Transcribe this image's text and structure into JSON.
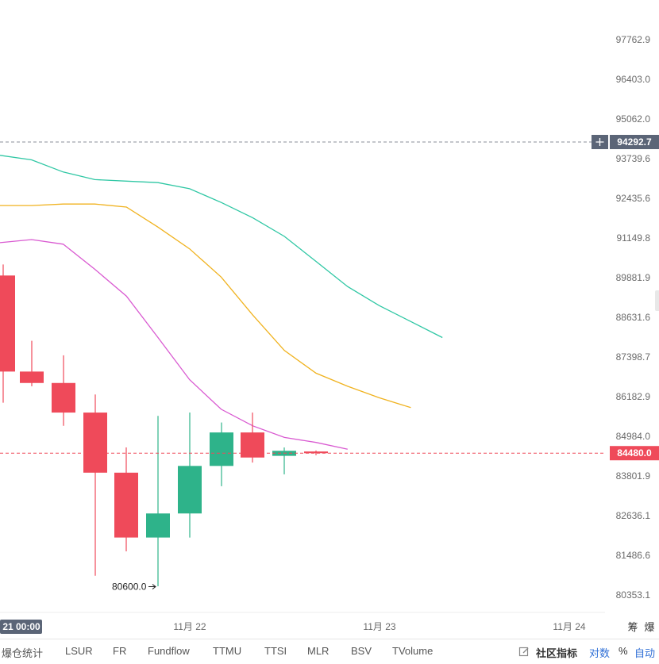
{
  "chart_data": {
    "type": "candlestick",
    "y_ticks": [
      "97762.9",
      "96403.0",
      "95062.0",
      "93739.6",
      "92435.6",
      "91149.8",
      "89881.9",
      "88631.6",
      "87398.7",
      "86182.9",
      "84984.0",
      "83801.9",
      "82636.1",
      "81486.6",
      "80353.1"
    ],
    "x_ticks": [
      "21 00:00",
      "11月 22",
      "11月 23",
      "11月 24"
    ],
    "price_tags": [
      {
        "label": "94292.7",
        "kind": "crosshair",
        "value": 94292.7
      },
      {
        "label": "84480.0",
        "kind": "last",
        "value": 84480.0
      }
    ],
    "low_annotation": "80600.0",
    "candles": [
      {
        "open": 89950,
        "high": 90300,
        "low": 86000,
        "close": 86950,
        "color": "red"
      },
      {
        "open": 86950,
        "high": 87900,
        "low": 86500,
        "close": 86600,
        "color": "red"
      },
      {
        "open": 86600,
        "high": 87450,
        "low": 85300,
        "close": 85700,
        "color": "red"
      },
      {
        "open": 85700,
        "high": 86250,
        "low": 80900,
        "close": 83900,
        "color": "red"
      },
      {
        "open": 83900,
        "high": 84650,
        "low": 81600,
        "close": 82000,
        "color": "red"
      },
      {
        "open": 82000,
        "high": 85600,
        "low": 80600,
        "close": 82700,
        "color": "green"
      },
      {
        "open": 82700,
        "high": 85700,
        "low": 82000,
        "close": 84100,
        "color": "green"
      },
      {
        "open": 84100,
        "high": 85400,
        "low": 83500,
        "close": 85100,
        "color": "green"
      },
      {
        "open": 85100,
        "high": 85700,
        "low": 84200,
        "close": 84350,
        "color": "red"
      },
      {
        "open": 84400,
        "high": 84650,
        "low": 83850,
        "close": 84550,
        "color": "green"
      },
      {
        "open": 84530,
        "high": 84560,
        "low": 84420,
        "close": 84480,
        "color": "red"
      }
    ],
    "bands": [
      {
        "color": "#2fc7a4",
        "values": [
          93850,
          93700,
          93300,
          93050,
          93000,
          92950,
          92750,
          92300,
          91800,
          91200,
          90400,
          89600,
          89000,
          88500,
          88000
        ]
      },
      {
        "color": "#f0b21e",
        "values": [
          92200,
          92200,
          92250,
          92250,
          92150,
          91500,
          90800,
          89900,
          88700,
          87600,
          86900,
          86500,
          86150,
          85850
        ]
      },
      {
        "color": "#d95ad1",
        "values": [
          91000,
          91100,
          90950,
          90150,
          89300,
          88000,
          86700,
          85800,
          85300,
          84950,
          84800,
          84600
        ]
      }
    ]
  },
  "footer": {
    "indicators": [
      "爆仓统计",
      "LSUR",
      "FR",
      "Fundflow",
      "TTMU",
      "TTSI",
      "MLR",
      "BSV",
      "TVolume"
    ],
    "community": "社区指标",
    "log": "对数",
    "percent": "%",
    "auto": "自动"
  },
  "axis_corner": [
    "筹",
    "爆"
  ],
  "colors": {
    "up": "#2eb38a",
    "down": "#ef4a5a",
    "crosshair_tag": "#5b6577",
    "last_tag": "#ef4a5a"
  }
}
